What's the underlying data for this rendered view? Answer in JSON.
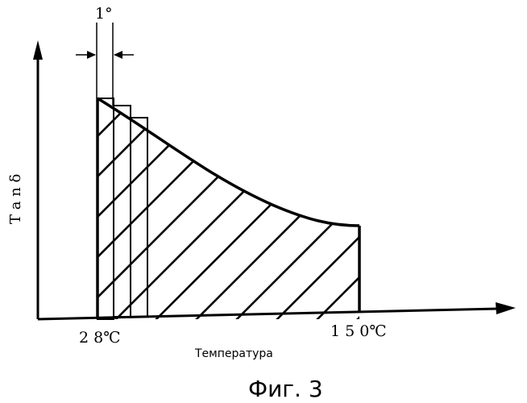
{
  "figure": {
    "y_axis_label": "T a n δ",
    "x_axis_label": "Температура",
    "tick_start": "2 8℃",
    "tick_end": "1 5 0℃",
    "increment_label": "1°",
    "caption": "Фиг. 3"
  }
}
